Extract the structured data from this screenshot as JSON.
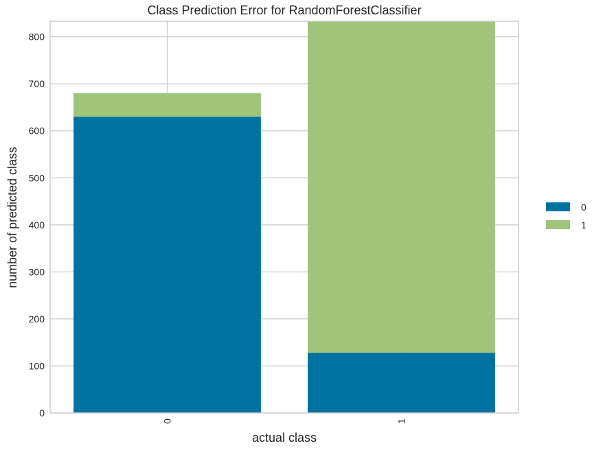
{
  "chart_data": {
    "type": "bar",
    "stacked": true,
    "title": "Class Prediction Error for RandomForestClassifier",
    "xlabel": "actual class",
    "ylabel": "number of predicted class",
    "categories": [
      "0",
      "1"
    ],
    "series": [
      {
        "name": "0",
        "color": "#0072a2",
        "values": [
          630,
          128
        ]
      },
      {
        "name": "1",
        "color": "#9fc47a",
        "values": [
          50,
          705
        ]
      }
    ],
    "ylim": [
      0,
      833
    ],
    "yticks": [
      0,
      100,
      200,
      300,
      400,
      500,
      600,
      700,
      800
    ],
    "grid": true,
    "legend_position": "right"
  }
}
